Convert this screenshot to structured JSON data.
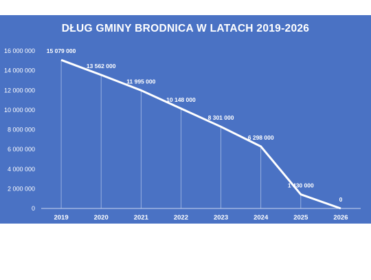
{
  "chart_data": {
    "type": "line",
    "title": "DŁUG GMINY BRODNICA W LATACH 2019-2026",
    "xlabel": "",
    "ylabel": "",
    "categories": [
      "2019",
      "2020",
      "2021",
      "2022",
      "2023",
      "2024",
      "2025",
      "2026"
    ],
    "series": [
      {
        "values": [
          15079000,
          13562000,
          11995000,
          10148000,
          8301000,
          6298000,
          1430000,
          0
        ]
      }
    ],
    "data_labels": [
      "15 079 000",
      "13 562 000",
      "11 995 000",
      "10 148 000",
      "8 301 000",
      "6 298 000",
      "1 430 000",
      "0"
    ],
    "ylim": [
      0,
      16000000
    ],
    "yticks": [
      0,
      2000000,
      4000000,
      6000000,
      8000000,
      10000000,
      12000000,
      14000000,
      16000000
    ],
    "ytick_labels": [
      "0",
      "2 000 000",
      "4 000 000",
      "6 000 000",
      "8 000 000",
      "10 000 000",
      "12 000 000",
      "14 000 000",
      "16 000 000"
    ],
    "grid": false,
    "drop_lines": true,
    "legend": "none",
    "colors": {
      "background": "#4a72c4",
      "line": "#ffffff",
      "text": "#ffffff",
      "drop_line": "#c9d6f0"
    }
  }
}
